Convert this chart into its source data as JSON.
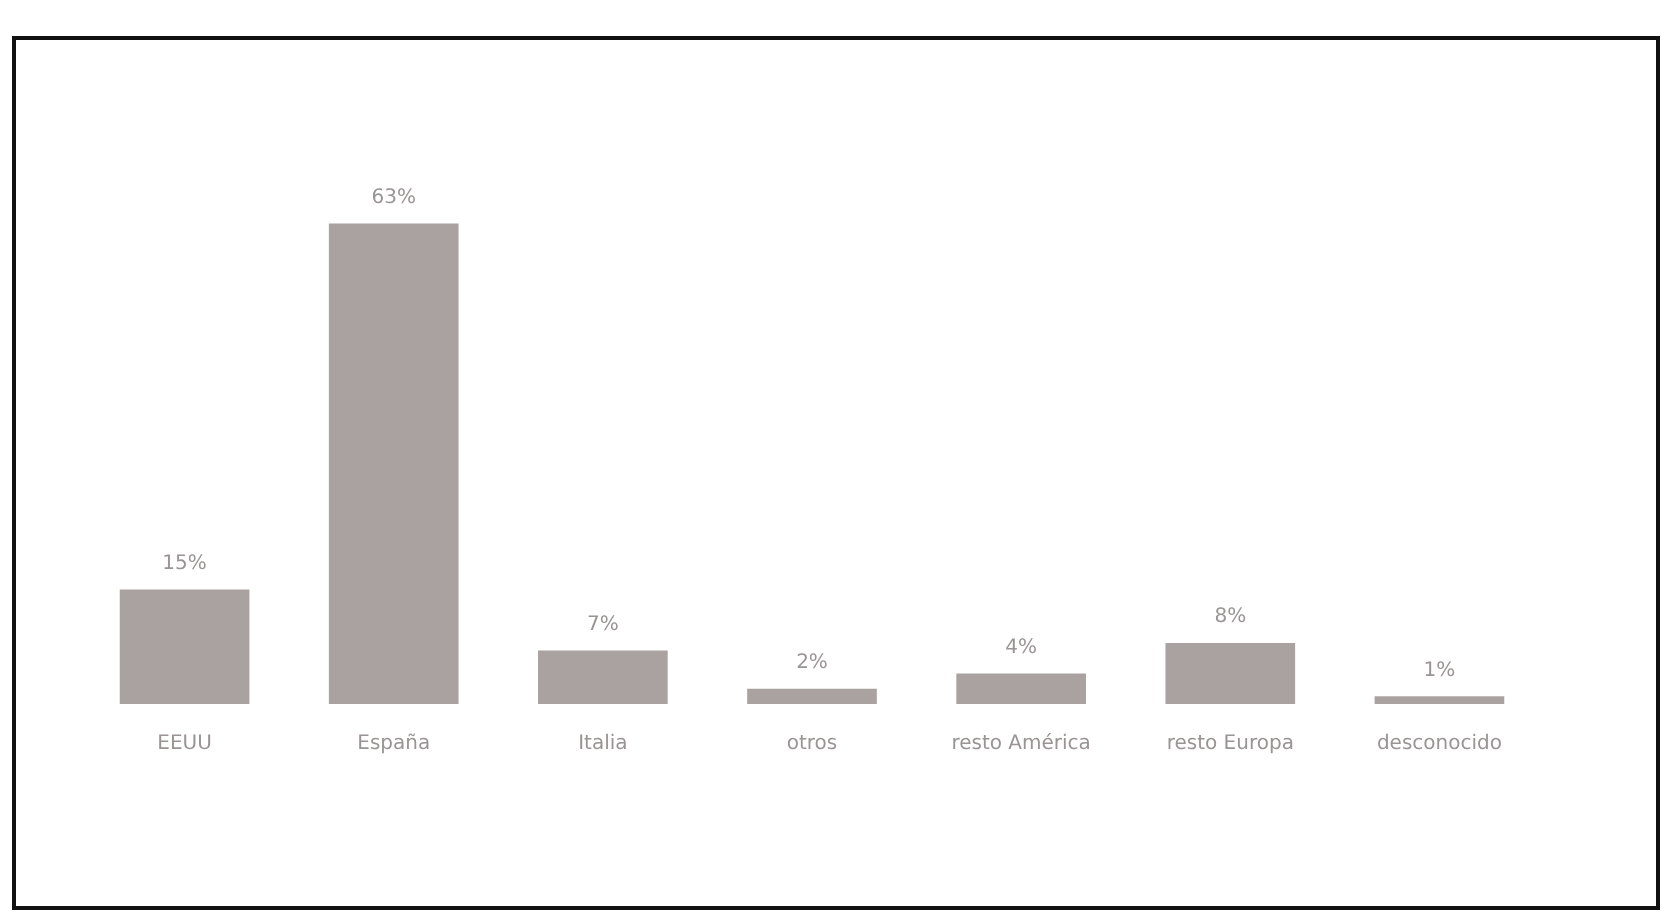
{
  "chart_data": {
    "type": "bar",
    "categories": [
      "EEUU",
      "España",
      "Italia",
      "otros",
      "resto América",
      "resto Europa",
      "desconocido"
    ],
    "values": [
      15,
      63,
      7,
      2,
      4,
      8,
      1
    ],
    "value_labels": [
      "15%",
      "63%",
      "7%",
      "2%",
      "4%",
      "8%",
      "1%"
    ],
    "color": "#aaa2a0",
    "grid": false,
    "legend": false
  }
}
